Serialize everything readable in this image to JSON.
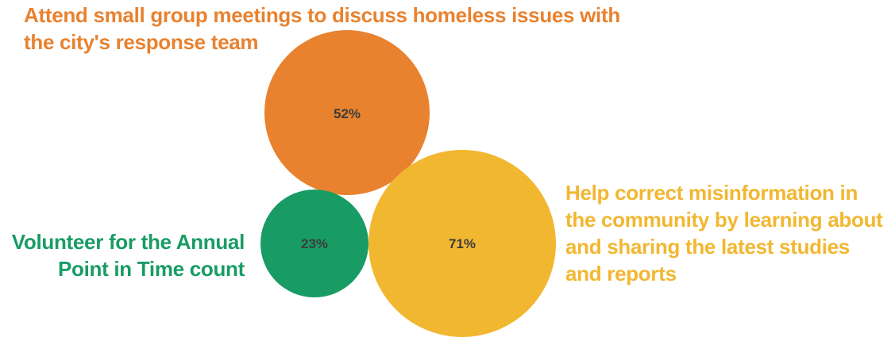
{
  "chart_data": {
    "type": "bubble",
    "title": "",
    "points": [
      {
        "label": "Attend small group meetings to discuss homeless issues with the city's response team",
        "value": 52,
        "value_label": "52%",
        "color": "#E8822F"
      },
      {
        "label": "Help correct misinformation in the community by learning about and sharing the latest studies and reports",
        "value": 71,
        "value_label": "71%",
        "color": "#F2B731"
      },
      {
        "label": "Volunteer for the Annual Point in Time count",
        "value": 23,
        "value_label": "23%",
        "color": "#189C64"
      }
    ],
    "value_text_color": "#3c3c3c"
  }
}
